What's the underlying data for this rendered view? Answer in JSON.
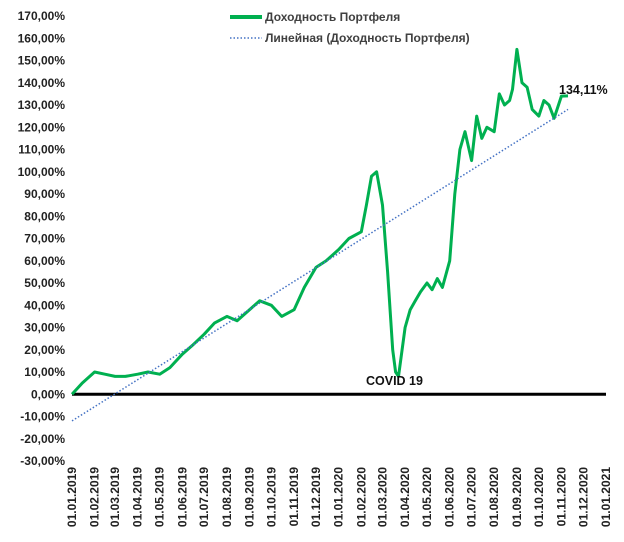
{
  "chart_data": {
    "type": "line",
    "title": "",
    "xlabel": "",
    "ylabel": "",
    "y_unit": "%",
    "ylim": [
      -30,
      170
    ],
    "y_ticks": [
      -30,
      -20,
      -10,
      0,
      10,
      20,
      30,
      40,
      50,
      60,
      70,
      80,
      90,
      100,
      110,
      120,
      130,
      140,
      150,
      160,
      170
    ],
    "y_tick_labels": [
      "-30,00%",
      "-20,00%",
      "-10,00%",
      "0,00%",
      "10,00%",
      "20,00%",
      "30,00%",
      "40,00%",
      "50,00%",
      "60,00%",
      "70,00%",
      "80,00%",
      "90,00%",
      "100,00%",
      "110,00%",
      "120,00%",
      "130,00%",
      "140,00%",
      "150,00%",
      "160,00%",
      "170,00%"
    ],
    "x_tick_labels": [
      "01.01.2019",
      "01.02.2019",
      "01.03.2019",
      "01.04.2019",
      "01.05.2019",
      "01.06.2019",
      "01.07.2019",
      "01.08.2019",
      "01.09.2019",
      "01.10.2019",
      "01.11.2019",
      "01.12.2019",
      "01.01.2020",
      "01.02.2020",
      "01.03.2020",
      "01.04.2020",
      "01.05.2020",
      "01.06.2020",
      "01.07.2020",
      "01.08.2020",
      "01.09.2020",
      "01.10.2020",
      "01.11.2020",
      "01.12.2020",
      "01.01.2021"
    ],
    "legend_position": "top",
    "grid": false,
    "series": [
      {
        "name": "Доходность Портфеля",
        "style": "solid",
        "color": "#00b050",
        "x": [
          "01.01.2019",
          "15.01.2019",
          "01.02.2019",
          "15.02.2019",
          "01.03.2019",
          "15.03.2019",
          "01.04.2019",
          "15.04.2019",
          "01.05.2019",
          "15.05.2019",
          "01.06.2019",
          "15.06.2019",
          "01.07.2019",
          "15.07.2019",
          "01.08.2019",
          "15.08.2019",
          "01.09.2019",
          "15.09.2019",
          "01.10.2019",
          "15.10.2019",
          "01.11.2019",
          "15.11.2019",
          "01.12.2019",
          "15.12.2019",
          "01.01.2020",
          "15.01.2020",
          "01.02.2020",
          "08.02.2020",
          "15.02.2020",
          "22.02.2020",
          "01.03.2020",
          "08.03.2020",
          "15.03.2020",
          "19.03.2020",
          "23.03.2020",
          "01.04.2020",
          "08.04.2020",
          "15.04.2020",
          "22.04.2020",
          "01.05.2020",
          "08.05.2020",
          "15.05.2020",
          "22.05.2020",
          "01.06.2020",
          "08.06.2020",
          "15.06.2020",
          "22.06.2020",
          "01.07.2020",
          "08.07.2020",
          "15.07.2020",
          "22.07.2020",
          "01.08.2020",
          "08.08.2020",
          "15.08.2020",
          "22.08.2020",
          "26.08.2020",
          "01.09.2020",
          "08.09.2020",
          "15.09.2020",
          "22.09.2020",
          "01.10.2020",
          "08.10.2020",
          "15.10.2020",
          "22.10.2020",
          "01.11.2020",
          "10.11.2020"
        ],
        "y": [
          0,
          5,
          10,
          9,
          8,
          8,
          9,
          10,
          9,
          12,
          18,
          22,
          27,
          32,
          35,
          33,
          38,
          42,
          40,
          35,
          38,
          48,
          57,
          60,
          65,
          70,
          73,
          85,
          98,
          100,
          85,
          55,
          20,
          10,
          8,
          30,
          38,
          42,
          46,
          50,
          47,
          52,
          48,
          60,
          90,
          110,
          118,
          105,
          125,
          115,
          120,
          118,
          135,
          130,
          132,
          137,
          155,
          140,
          138,
          128,
          125,
          132,
          130,
          124,
          134,
          134.11
        ]
      },
      {
        "name": "Линейная (Доходность Портфеля)",
        "style": "dotted",
        "color": "#4472c4",
        "x": [
          "01.01.2019",
          "10.11.2020"
        ],
        "y": [
          -12,
          128
        ]
      }
    ],
    "annotations": [
      {
        "text": "134,11%",
        "x": "10.11.2020",
        "y": 134.11
      },
      {
        "text": "COVID 19",
        "x": "23.03.2020",
        "y": 8
      }
    ]
  }
}
